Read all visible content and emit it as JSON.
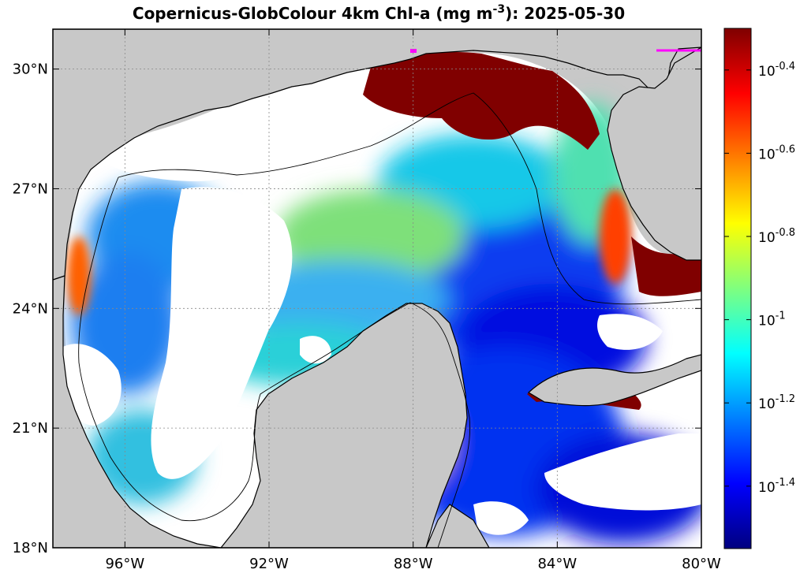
{
  "title_main": "Copernicus-GlobColour 4km Chl-a (mg m",
  "title_exp": "-3",
  "title_date": "): 2025-05-30",
  "map": {
    "lon_range": [
      -98,
      -80
    ],
    "lat_range": [
      18,
      31
    ],
    "x_ticks": [
      {
        "lon": -96,
        "label": "96°W"
      },
      {
        "lon": -92,
        "label": "92°W"
      },
      {
        "lon": -88,
        "label": "88°W"
      },
      {
        "lon": -84,
        "label": "84°W"
      },
      {
        "lon": -80,
        "label": "80°W"
      }
    ],
    "y_ticks": [
      {
        "lat": 18,
        "label": "18°N"
      },
      {
        "lat": 21,
        "label": "21°N"
      },
      {
        "lat": 24,
        "label": "24°N"
      },
      {
        "lat": 27,
        "label": "27°N"
      },
      {
        "lat": 30,
        "label": "30°N"
      }
    ],
    "grid": "dotted"
  },
  "colorbar": {
    "ticks": [
      {
        "exp": -0.4,
        "label_base": "10",
        "label_exp": "-0.4"
      },
      {
        "exp": -0.6,
        "label_base": "10",
        "label_exp": "-0.6"
      },
      {
        "exp": -0.8,
        "label_base": "10",
        "label_exp": "-0.8"
      },
      {
        "exp": -1.0,
        "label_base": "10",
        "label_exp": "-1"
      },
      {
        "exp": -1.2,
        "label_base": "10",
        "label_exp": "-1.2"
      },
      {
        "exp": -1.4,
        "label_base": "10",
        "label_exp": "-1.4"
      }
    ],
    "colors": [
      "#00007f",
      "#0000ff",
      "#007fff",
      "#00ffff",
      "#7fff7f",
      "#ffff00",
      "#ff7f00",
      "#ff0000",
      "#7f0000"
    ]
  },
  "colors": {
    "land": "#c8c8c8",
    "nodata": "#ffffff",
    "high_chl": "#800000",
    "coastline": "#000000"
  }
}
